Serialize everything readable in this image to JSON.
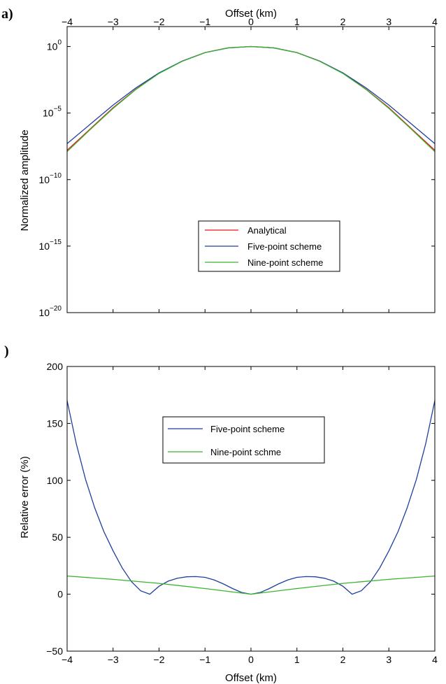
{
  "panels": [
    {
      "label": "a)",
      "chart_data": {
        "type": "line",
        "xlabel": "Offset (km)",
        "ylabel": "Normalized amplitude",
        "xlim": [
          -4,
          4
        ],
        "ylim_log10": [
          -20,
          1.5
        ],
        "yscale": "log",
        "x_ticks": [
          "−4",
          "−3",
          "−2",
          "−1",
          "0",
          "1",
          "2",
          "3",
          "4"
        ],
        "y_tick_exponents": [
          "0",
          "−5",
          "−10",
          "−15",
          "−20"
        ],
        "y_tick_base": "10",
        "legend_position": "center",
        "series": [
          {
            "name": "Analytical",
            "color": "#e8141a",
            "x": [
              -4,
              -3.5,
              -3,
              -2.5,
              -2,
              -1.5,
              -1,
              -0.5,
              0,
              0.5,
              1,
              1.5,
              2,
              2.5,
              3,
              3.5,
              4
            ],
            "log10_y": [
              -7.8,
              -6.2,
              -4.6,
              -3.2,
              -2.0,
              -1.1,
              -0.45,
              -0.1,
              0,
              -0.1,
              -0.45,
              -1.1,
              -2.0,
              -3.2,
              -4.6,
              -6.2,
              -7.8
            ]
          },
          {
            "name": "Five-point scheme",
            "color": "#1f3f9e",
            "x": [
              -4,
              -3.5,
              -3,
              -2.5,
              -2,
              -1.5,
              -1,
              -0.5,
              0,
              0.5,
              1,
              1.5,
              2,
              2.5,
              3,
              3.5,
              4
            ],
            "log10_y": [
              -7.3,
              -5.85,
              -4.4,
              -3.1,
              -1.98,
              -1.1,
              -0.46,
              -0.11,
              0,
              -0.11,
              -0.46,
              -1.1,
              -1.98,
              -3.1,
              -4.4,
              -5.85,
              -7.3
            ]
          },
          {
            "name": "Nine-point scheme",
            "color": "#39b52d",
            "x": [
              -4,
              -3.5,
              -3,
              -2.5,
              -2,
              -1.5,
              -1,
              -0.5,
              0,
              0.5,
              1,
              1.5,
              2,
              2.5,
              3,
              3.5,
              4
            ],
            "log10_y": [
              -7.9,
              -6.25,
              -4.65,
              -3.22,
              -2.02,
              -1.12,
              -0.46,
              -0.1,
              0,
              -0.1,
              -0.46,
              -1.12,
              -2.02,
              -3.22,
              -4.65,
              -6.25,
              -7.9
            ]
          }
        ]
      }
    },
    {
      "label": ")",
      "chart_data": {
        "type": "line",
        "xlabel": "Offset (km)",
        "ylabel": "Relative error (%)",
        "xlim": [
          -4,
          4
        ],
        "ylim": [
          -50,
          200
        ],
        "x_ticks": [
          "−4",
          "−3",
          "−2",
          "−1",
          "0",
          "1",
          "2",
          "3",
          "4"
        ],
        "y_ticks": [
          "200",
          "150",
          "100",
          "50",
          "0",
          "−50"
        ],
        "legend_position": "upper center",
        "series": [
          {
            "name": "Five-point scheme",
            "color": "#1f3f9e",
            "x": [
              -4,
              -3.8,
              -3.6,
              -3.4,
              -3.2,
              -3,
              -2.8,
              -2.6,
              -2.4,
              -2.2,
              -2,
              -1.8,
              -1.6,
              -1.4,
              -1.2,
              -1,
              -0.8,
              -0.6,
              -0.4,
              -0.2,
              0,
              0.2,
              0.4,
              0.6,
              0.8,
              1,
              1.2,
              1.4,
              1.6,
              1.8,
              2,
              2.2,
              2.4,
              2.6,
              2.8,
              3,
              3.2,
              3.4,
              3.6,
              3.8,
              4
            ],
            "y": [
              170,
              132,
              101,
              76,
              55,
              38,
              23,
              11,
              3,
              0,
              7,
              11.5,
              14,
              15.3,
              15.5,
              14.8,
              12.5,
              9,
              5,
              1.5,
              0,
              1.5,
              5,
              9,
              12.5,
              14.8,
              15.5,
              15.3,
              14,
              11.5,
              7,
              0,
              3,
              11,
              23,
              38,
              55,
              76,
              101,
              132,
              170
            ]
          },
          {
            "name": "Nine-point schme",
            "color": "#39b52d",
            "x": [
              -4,
              -3,
              -2,
              -1,
              0,
              1,
              2,
              3,
              4
            ],
            "y": [
              16,
              13,
              9.5,
              5,
              0,
              5,
              9.5,
              13,
              16
            ]
          }
        ]
      }
    }
  ]
}
